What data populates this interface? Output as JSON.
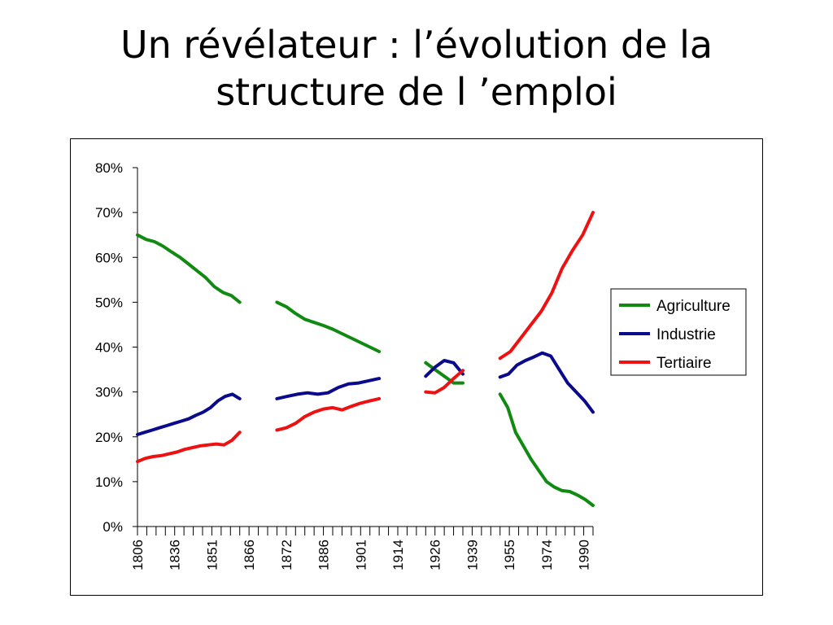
{
  "title": {
    "line1": "Un révélateur : l’évolution de la",
    "line2": "structure de l ’emploi"
  },
  "chart_data": {
    "type": "line",
    "title": "",
    "xlabel": "",
    "ylabel": "",
    "ylim": [
      0,
      0.8
    ],
    "y_ticks": [
      "0%",
      "10%",
      "20%",
      "30%",
      "40%",
      "50%",
      "60%",
      "70%",
      "80%"
    ],
    "x_tick_labels": [
      "1806",
      "1836",
      "1851",
      "1866",
      "1872",
      "1886",
      "1901",
      "1914",
      "1926",
      "1939",
      "1955",
      "1974",
      "1990"
    ],
    "legend": {
      "position": "right"
    },
    "grid": false,
    "colors": {
      "Agriculture": "#118a11",
      "Industrie": "#0a0a8c",
      "Tertiaire": "#ee1111"
    },
    "series": [
      {
        "name": "Agriculture",
        "segments": [
          [
            0.65,
            0.64,
            0.635,
            0.625,
            0.612,
            0.6,
            0.585,
            0.57,
            0.555,
            0.535,
            0.522,
            0.515,
            0.5
          ],
          [
            0.5,
            0.49,
            0.475,
            0.462,
            0.455,
            0.448,
            0.44,
            0.43,
            0.42,
            0.41,
            0.4,
            0.39
          ],
          [
            0.365,
            0.35,
            0.335,
            0.32,
            0.32
          ],
          [
            0.295,
            0.265,
            0.21,
            0.18,
            0.15,
            0.125,
            0.1,
            0.088,
            0.08,
            0.078,
            0.07,
            0.06,
            0.047
          ]
        ]
      },
      {
        "name": "Industrie",
        "segments": [
          [
            0.205,
            0.21,
            0.215,
            0.22,
            0.225,
            0.23,
            0.235,
            0.24,
            0.248,
            0.255,
            0.265,
            0.28,
            0.29,
            0.295,
            0.285
          ],
          [
            0.285,
            0.29,
            0.295,
            0.298,
            0.295,
            0.298,
            0.31,
            0.318,
            0.32,
            0.325,
            0.33
          ],
          [
            0.335,
            0.355,
            0.37,
            0.365,
            0.34
          ],
          [
            0.333,
            0.34,
            0.36,
            0.37,
            0.378,
            0.387,
            0.38,
            0.35,
            0.32,
            0.3,
            0.28,
            0.255
          ]
        ]
      },
      {
        "name": "Tertiaire",
        "segments": [
          [
            0.145,
            0.152,
            0.156,
            0.158,
            0.162,
            0.166,
            0.172,
            0.176,
            0.18,
            0.182,
            0.184,
            0.182,
            0.192,
            0.21
          ],
          [
            0.215,
            0.22,
            0.23,
            0.245,
            0.255,
            0.262,
            0.265,
            0.26,
            0.268,
            0.275,
            0.28,
            0.285
          ],
          [
            0.3,
            0.298,
            0.31,
            0.33,
            0.348
          ],
          [
            0.375,
            0.39,
            0.42,
            0.45,
            0.48,
            0.52,
            0.575,
            0.615,
            0.65,
            0.7
          ]
        ]
      }
    ]
  }
}
